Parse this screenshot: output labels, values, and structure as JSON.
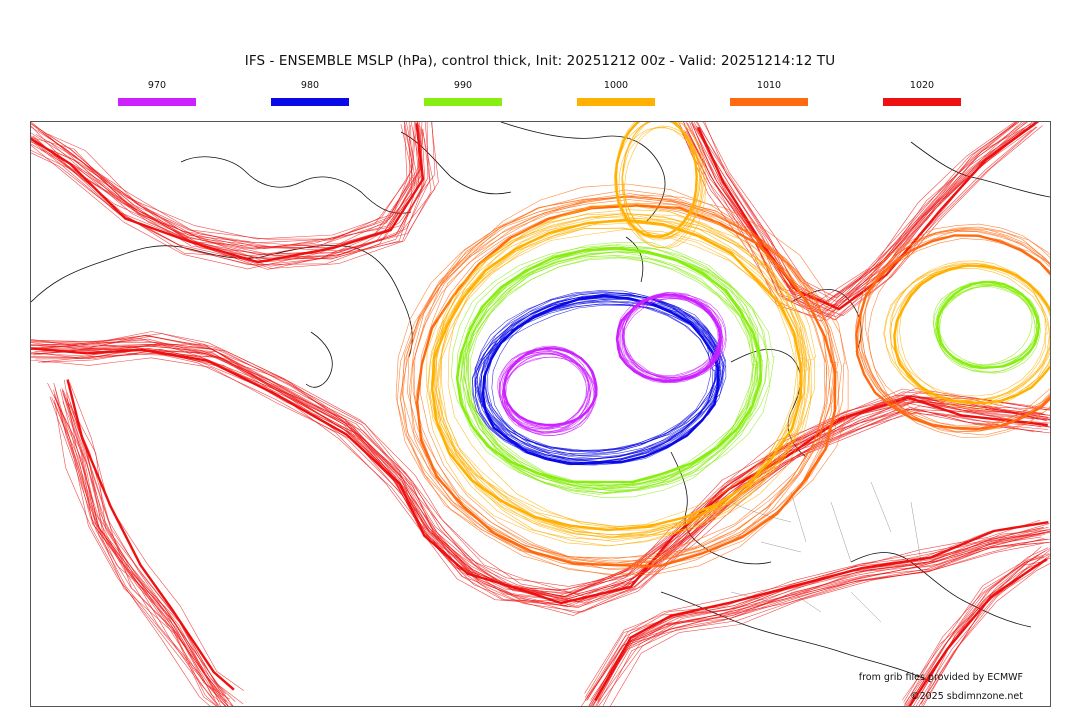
{
  "title": "IFS - ENSEMBLE MSLP (hPa), control thick, Init: 20251212 00z - Valid: 20251214:12 TU",
  "legend": [
    {
      "label": "970",
      "color": "#cc22ff"
    },
    {
      "label": "980",
      "color": "#0a0ae6"
    },
    {
      "label": "990",
      "color": "#88ee11"
    },
    {
      "label": "1000",
      "color": "#ffb000"
    },
    {
      "label": "1010",
      "color": "#ff6a10"
    },
    {
      "label": "1020",
      "color": "#ee1111"
    }
  ],
  "credits": {
    "source": "from grib files provided by ECMWF",
    "copyright": "©2025 sbdimnzone.net"
  }
}
